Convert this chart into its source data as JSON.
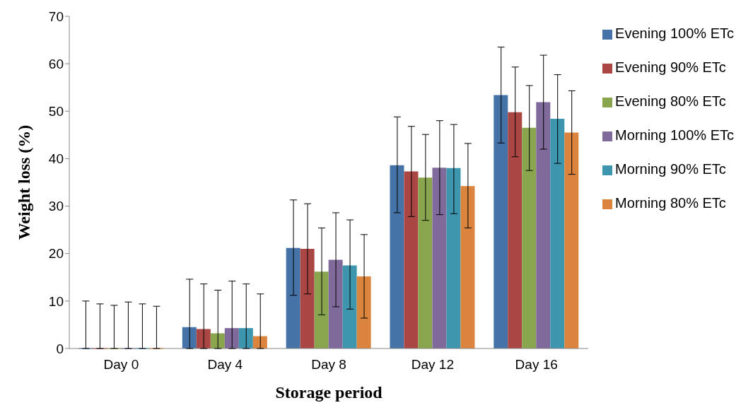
{
  "chart_data": {
    "type": "bar",
    "xlabel": "Storage period",
    "ylabel": "Weight loss (%)",
    "categories": [
      "Day 0",
      "Day 4",
      "Day 8",
      "Day 12",
      "Day 16"
    ],
    "ylim": [
      0,
      70
    ],
    "yticks": [
      0,
      10,
      20,
      30,
      40,
      50,
      60,
      70
    ],
    "grid": false,
    "legend": "right",
    "series": [
      {
        "name": "Evening 100% ETc",
        "color": "#4572a7",
        "values": [
          0,
          4.5,
          21.2,
          38.6,
          53.4
        ],
        "errors": [
          [
            0,
            10
          ],
          [
            0,
            14.6
          ],
          [
            11.2,
            31.3
          ],
          [
            28.6,
            48.8
          ],
          [
            43.3,
            63.5
          ]
        ]
      },
      {
        "name": "Evening 90% ETc",
        "color": "#aa4643",
        "values": [
          0,
          4.1,
          21.0,
          37.3,
          49.8
        ],
        "errors": [
          [
            0,
            9.4
          ],
          [
            0,
            13.6
          ],
          [
            11.5,
            30.5
          ],
          [
            27.8,
            46.8
          ],
          [
            40.4,
            59.3
          ]
        ]
      },
      {
        "name": "Evening 80% ETc",
        "color": "#89a54e",
        "values": [
          0,
          3.2,
          16.2,
          36.0,
          46.5
        ],
        "errors": [
          [
            0,
            9.1
          ],
          [
            0,
            12.3
          ],
          [
            7.1,
            25.4
          ],
          [
            27.0,
            45.1
          ],
          [
            37.5,
            55.4
          ]
        ]
      },
      {
        "name": "Morning 100% ETc",
        "color": "#80699b",
        "values": [
          0,
          4.3,
          18.7,
          38.1,
          51.9
        ],
        "errors": [
          [
            0,
            9.8
          ],
          [
            0,
            14.2
          ],
          [
            8.8,
            28.6
          ],
          [
            28.2,
            48.0
          ],
          [
            42.0,
            61.8
          ]
        ]
      },
      {
        "name": "Morning 90% ETc",
        "color": "#3d96ae",
        "values": [
          0,
          4.3,
          17.5,
          38.0,
          48.4
        ],
        "errors": [
          [
            0,
            9.4
          ],
          [
            0,
            13.6
          ],
          [
            8.3,
            27.1
          ],
          [
            28.4,
            47.2
          ],
          [
            39.0,
            57.7
          ]
        ]
      },
      {
        "name": "Morning 80% ETc",
        "color": "#db843d",
        "values": [
          0,
          2.6,
          15.2,
          34.2,
          45.5
        ],
        "errors": [
          [
            0,
            8.9
          ],
          [
            0,
            11.5
          ],
          [
            6.4,
            24.0
          ],
          [
            25.4,
            43.2
          ],
          [
            36.7,
            54.3
          ]
        ]
      }
    ]
  }
}
